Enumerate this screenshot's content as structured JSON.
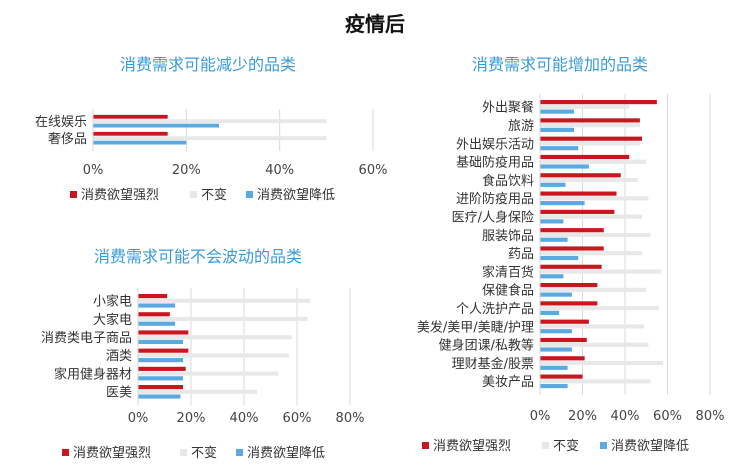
{
  "page": {
    "title": "疫情后"
  },
  "colors": {
    "strong": "#c9161f",
    "unchanged": "#e8e8e8",
    "lower": "#5aa9e0",
    "title": "#3a9bd5"
  },
  "chart_data": [
    {
      "type": "bar",
      "orientation": "horizontal",
      "title": "消费需求可能减少的品类",
      "categories": [
        "在线娱乐",
        "奢侈品"
      ],
      "xlim": [
        0,
        0.6
      ],
      "xticks": [
        "0%",
        "20%",
        "40%",
        "60%"
      ],
      "series": [
        {
          "name": "消费欲望强烈",
          "values": [
            0.16,
            0.16
          ]
        },
        {
          "name": "不变",
          "values": [
            0.5,
            0.5
          ]
        },
        {
          "name": "消费欲望降低",
          "values": [
            0.27,
            0.2
          ]
        }
      ],
      "legend": "bottom",
      "grid": true
    },
    {
      "type": "bar",
      "orientation": "horizontal",
      "title": "消费需求可能不会波动的品类",
      "categories": [
        "小家电",
        "大家电",
        "消费类电子商品",
        "酒类",
        "家用健身器材",
        "医美"
      ],
      "xlim": [
        0,
        0.8
      ],
      "xticks": [
        "0%",
        "20%",
        "40%",
        "60%",
        "80%"
      ],
      "series": [
        {
          "name": "消费欲望强烈",
          "values": [
            0.11,
            0.12,
            0.19,
            0.19,
            0.18,
            0.17
          ]
        },
        {
          "name": "不变",
          "values": [
            0.65,
            0.64,
            0.58,
            0.57,
            0.53,
            0.45
          ]
        },
        {
          "name": "消费欲望降低",
          "values": [
            0.14,
            0.14,
            0.17,
            0.17,
            0.17,
            0.16
          ]
        }
      ],
      "legend": "bottom",
      "grid": true
    },
    {
      "type": "bar",
      "orientation": "horizontal",
      "title": "消费需求可能增加的品类",
      "categories": [
        "外出聚餐",
        "旅游",
        "外出娱乐活动",
        "基础防疫用品",
        "食品饮料",
        "进阶防疫用品",
        "医疗/人身保险",
        "服装饰品",
        "药品",
        "家清百货",
        "保健食品",
        "个人洗护产品",
        "美发/美甲/美睫/护理",
        "健身团课/私教等",
        "理财基金/股票",
        "美妆产品"
      ],
      "xlim": [
        0,
        0.8
      ],
      "xticks": [
        "0%",
        "20%",
        "40%",
        "60%",
        "80%"
      ],
      "series": [
        {
          "name": "消费欲望强烈",
          "values": [
            0.55,
            0.47,
            0.48,
            0.42,
            0.38,
            0.36,
            0.35,
            0.3,
            0.3,
            0.29,
            0.27,
            0.27,
            0.23,
            0.22,
            0.21,
            0.2
          ]
        },
        {
          "name": "不变",
          "values": [
            0.42,
            0.47,
            0.47,
            0.5,
            0.46,
            0.51,
            0.48,
            0.52,
            0.48,
            0.57,
            0.5,
            0.56,
            0.49,
            0.51,
            0.58,
            0.52
          ]
        },
        {
          "name": "消费欲望降低",
          "values": [
            0.16,
            0.16,
            0.18,
            0.23,
            0.12,
            0.21,
            0.11,
            0.13,
            0.18,
            0.11,
            0.15,
            0.09,
            0.15,
            0.15,
            0.13,
            0.13
          ]
        }
      ],
      "legend": "bottom",
      "grid": true
    }
  ]
}
